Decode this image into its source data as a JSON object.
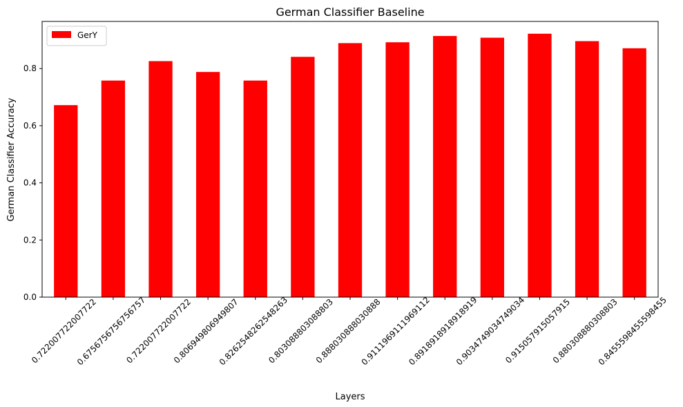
{
  "chart_data": {
    "type": "bar",
    "title": "German Classifier Baseline",
    "xlabel": "Layers",
    "ylabel": "German Classifier Accuracy",
    "categories": [
      "0.722007722007722",
      "0.6756756756756757",
      "0.722007722007722",
      "0.806949806949807",
      "0.8262548262548263",
      "0.803088803088803",
      "0.888030888030888",
      "0.9111969111969112",
      "0.8918918918918919",
      "0.9034749034749034",
      "0.915057915057915",
      "0.880308880308803",
      "0.8455598455598455"
    ],
    "series": [
      {
        "name": "GerY",
        "color": "#ff0000",
        "values": [
          0.672,
          0.758,
          0.826,
          0.788,
          0.758,
          0.841,
          0.889,
          0.892,
          0.914,
          0.908,
          0.922,
          0.896,
          0.871
        ]
      }
    ],
    "ylim": [
      0,
      0.965
    ],
    "yticks": [
      0.0,
      0.2,
      0.4,
      0.6,
      0.8
    ],
    "ytick_labels": [
      "0.0",
      "0.2",
      "0.4",
      "0.6",
      "0.8"
    ],
    "grid": false,
    "legend": "top-left",
    "xtick_rotation": 45
  }
}
